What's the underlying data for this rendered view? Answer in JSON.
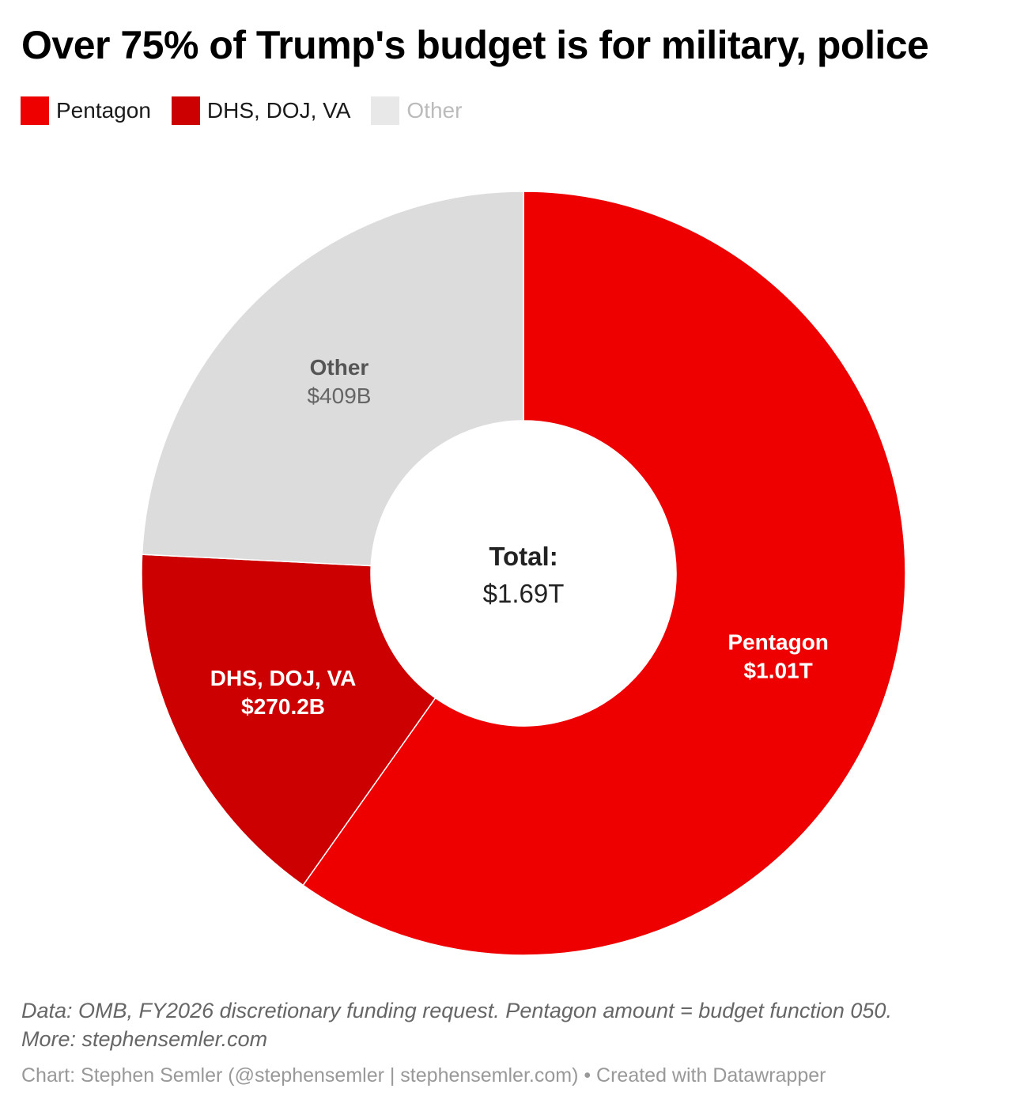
{
  "chart_data": {
    "type": "pie",
    "variant": "donut",
    "title": "Over 75% of Trump's budget is for military, police",
    "slices": [
      {
        "name": "Pentagon",
        "value": 1010,
        "label": "$1.01T",
        "color": "#ee0000",
        "legend_color": "#ee0000",
        "text_color": "#ffffff",
        "legend_text_color": "#1a1a1a"
      },
      {
        "name": "DHS, DOJ, VA",
        "value": 270.2,
        "label": "$270.2B",
        "color": "#cc0000",
        "legend_color": "#cc0000",
        "text_color": "#ffffff",
        "legend_text_color": "#1a1a1a"
      },
      {
        "name": "Other",
        "value": 409,
        "label": "$409B",
        "color": "#dcdcdc",
        "legend_color": "#e8e8e8",
        "text_color": "#555555",
        "legend_text_color": "#bbbbbb"
      }
    ],
    "center_label": "Total:",
    "center_value": "$1.69T",
    "legend_placement": "top-left",
    "unit": "USD billions"
  },
  "notes": {
    "line1": "Data: OMB, FY2026 discretionary funding request. Pentagon amount = budget function 050.",
    "line2": "More: stephensemler.com"
  },
  "credit": "Chart: Stephen Semler (@stephensemler | stephensemler.com) • Created with Datawrapper"
}
